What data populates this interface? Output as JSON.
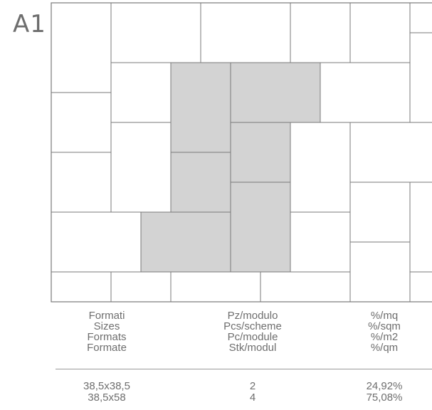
{
  "scheme_code": "A1",
  "colors": {
    "tile_fill": "#ffffff",
    "highlight_fill": "#d3d3d3",
    "tile_stroke": "#7a7a7a",
    "text": "#6e6e6e"
  },
  "table": {
    "headers": [
      {
        "lines": [
          "Formati",
          "Sizes",
          "Formats",
          "Formate"
        ]
      },
      {
        "lines": [
          "Pz/modulo",
          "Pcs/scheme",
          "Pc/module",
          "Stk/modul"
        ]
      },
      {
        "lines": [
          "%/mq",
          "%/sqm",
          "%/m2",
          "%/qm"
        ]
      }
    ],
    "rows": [
      {
        "size": "38,5x38,5",
        "pieces": "2",
        "percent": "24,92%"
      },
      {
        "size": "38,5x58",
        "pieces": "4",
        "percent": "75,08%"
      }
    ]
  }
}
